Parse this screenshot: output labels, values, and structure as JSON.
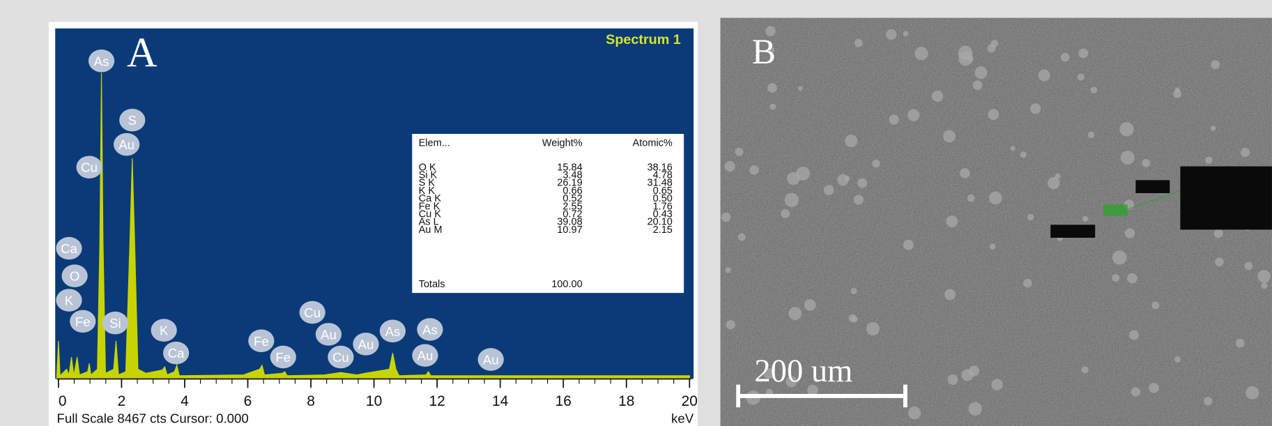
{
  "panel_a": {
    "label": "A",
    "spectrum_title": "Spectrum 1",
    "peaks": [
      "As",
      "S",
      "Au",
      "Cu",
      "Ca",
      "O",
      "K",
      "Fe",
      "Si",
      "K",
      "Ca",
      "Fe",
      "Fe",
      "Cu",
      "Au",
      "Cu",
      "Au",
      "As",
      "As",
      "Au",
      "Au"
    ],
    "x_ticks": [
      0,
      2,
      4,
      6,
      8,
      10,
      12,
      14,
      16,
      18,
      20
    ],
    "x_unit": "keV",
    "footer": "Full Scale 8467 cts Cursor: 0.000",
    "table": {
      "header": [
        "Elem...",
        "Weight%",
        "Atomic%"
      ],
      "rows": [
        [
          "O K",
          "15.84",
          "38.16"
        ],
        [
          "Si K",
          "3.48",
          "4.78"
        ],
        [
          "S K",
          "26.19",
          "31.48"
        ],
        [
          "K K",
          "0.66",
          "0.65"
        ],
        [
          "Ca K",
          "0.52",
          "0.50"
        ],
        [
          "Fe K",
          "2.55",
          "1.76"
        ],
        [
          "Cu K",
          "0.72",
          "0.43"
        ],
        [
          "As L",
          "39.08",
          "20.10"
        ],
        [
          "Au M",
          "10.97",
          "2.15"
        ]
      ],
      "totals": [
        "Totals",
        "100.00"
      ]
    }
  },
  "panel_b": {
    "label": "B",
    "scale_bar": "200 um"
  }
}
